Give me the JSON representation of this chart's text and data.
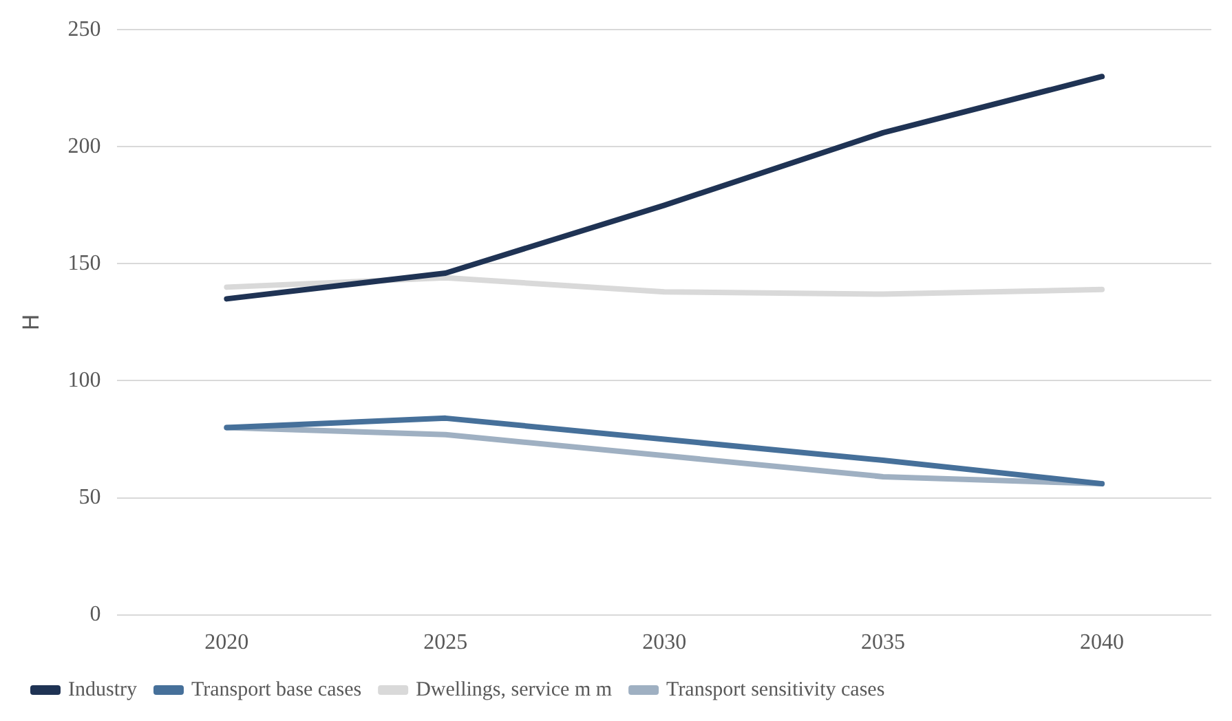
{
  "chart_data": {
    "type": "line",
    "ylabel": "H",
    "categories": [
      "2020",
      "2025",
      "2030",
      "2035",
      "2040"
    ],
    "series": [
      {
        "name": "Industry",
        "color": "#1f3354",
        "values": [
          135,
          146,
          175,
          206,
          230
        ]
      },
      {
        "name": "Transport base cases",
        "color": "#46709a",
        "values": [
          80,
          84,
          75,
          66,
          56
        ]
      },
      {
        "name": "Dwellings, service m m",
        "color": "#d9d9d9",
        "values": [
          140,
          144,
          138,
          137,
          139
        ]
      },
      {
        "name": "Transport sensitivity cases",
        "color": "#9fb0c2",
        "values": [
          80,
          77,
          68,
          59,
          56
        ]
      }
    ],
    "ylim": [
      0,
      250
    ],
    "yticks": [
      0,
      50,
      100,
      150,
      200,
      250
    ],
    "grid": "y",
    "legend": "bottom",
    "marker": "none",
    "line_style": "solid"
  }
}
